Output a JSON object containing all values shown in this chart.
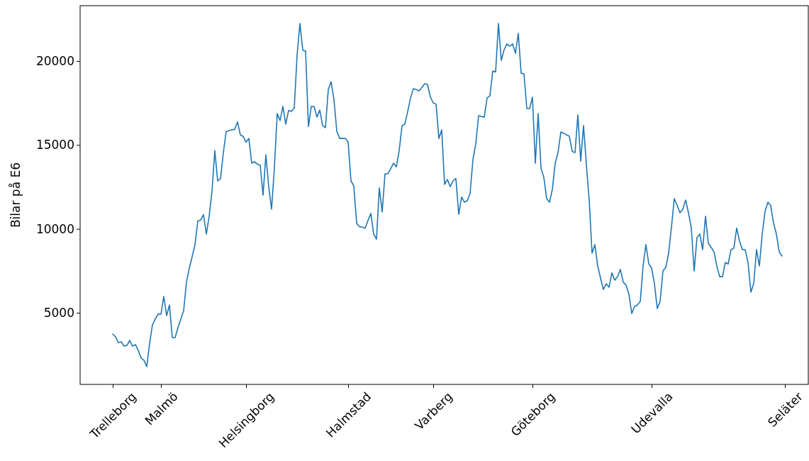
{
  "chart_data": {
    "type": "line",
    "ylabel": "Bilar på E6",
    "categories": [
      "Trelleborg",
      null,
      null,
      null,
      null,
      null,
      null,
      null,
      null,
      null,
      null,
      null,
      null,
      null,
      null,
      null,
      null,
      "Malmö",
      null,
      null,
      null,
      null,
      null,
      null,
      null,
      null,
      null,
      null,
      null,
      null,
      null,
      null,
      null,
      null,
      null,
      null,
      null,
      null,
      null,
      null,
      null,
      null,
      null,
      null,
      null,
      null,
      null,
      "Helsingborg",
      null,
      null,
      null,
      null,
      null,
      null,
      null,
      null,
      null,
      null,
      null,
      null,
      null,
      null,
      null,
      null,
      null,
      null,
      null,
      null,
      null,
      null,
      null,
      null,
      null,
      null,
      null,
      null,
      null,
      null,
      null,
      null,
      null,
      null,
      null,
      "Halmstad",
      null,
      null,
      null,
      null,
      null,
      null,
      null,
      null,
      null,
      null,
      null,
      null,
      null,
      null,
      null,
      null,
      null,
      null,
      null,
      null,
      null,
      null,
      null,
      null,
      null,
      null,
      null,
      null,
      null,
      "Varberg",
      null,
      null,
      null,
      null,
      null,
      null,
      null,
      null,
      null,
      null,
      null,
      null,
      null,
      null,
      null,
      null,
      null,
      null,
      null,
      null,
      null,
      null,
      null,
      null,
      null,
      null,
      null,
      null,
      null,
      null,
      null,
      null,
      null,
      null,
      "Göteborg",
      null,
      null,
      null,
      null,
      null,
      null,
      null,
      null,
      null,
      null,
      null,
      null,
      null,
      null,
      null,
      null,
      null,
      null,
      null,
      null,
      null,
      null,
      null,
      null,
      null,
      null,
      null,
      null,
      null,
      null,
      null,
      null,
      null,
      null,
      null,
      null,
      null,
      null,
      null,
      null,
      null,
      "Udevalla",
      null,
      null,
      null,
      null,
      null,
      null,
      null,
      null,
      null,
      null,
      null,
      null,
      null,
      null,
      null,
      null,
      null,
      null,
      null,
      null,
      null,
      null,
      null,
      null,
      null,
      null,
      null,
      null,
      null,
      null,
      null,
      null,
      null,
      null,
      null,
      null,
      null,
      null,
      null,
      null,
      null,
      null,
      null,
      null,
      null,
      null,
      "Seläter"
    ],
    "ylim": [
      730,
      23300
    ],
    "yticks": [
      5000,
      10000,
      15000,
      20000
    ],
    "grid": false,
    "marker": "none",
    "line_style": "solid",
    "series": [
      {
        "color": "#1f77b4",
        "values": [
          3730,
          3560,
          3220,
          3270,
          3010,
          3060,
          3350,
          3010,
          3100,
          2760,
          2300,
          2170,
          1790,
          3180,
          4280,
          4620,
          4920,
          4920,
          5970,
          4830,
          5460,
          3520,
          3520,
          4110,
          4620,
          5130,
          6820,
          7660,
          8340,
          9060,
          10470,
          10530,
          10850,
          9690,
          10750,
          12230,
          14660,
          12850,
          12990,
          14540,
          15800,
          15850,
          15900,
          15930,
          16370,
          15600,
          15510,
          15170,
          15390,
          13910,
          14000,
          13850,
          13790,
          12010,
          14410,
          12520,
          11170,
          13660,
          16870,
          16450,
          17300,
          16240,
          17050,
          17000,
          17200,
          20340,
          22240,
          20650,
          20600,
          16100,
          17300,
          17290,
          16660,
          17080,
          16150,
          16030,
          18300,
          18770,
          17720,
          15820,
          15390,
          15390,
          15390,
          15180,
          12860,
          12560,
          10340,
          10130,
          10100,
          10040,
          10500,
          10920,
          9690,
          9390,
          12440,
          11000,
          13280,
          13280,
          13580,
          13910,
          13700,
          14660,
          16150,
          16240,
          17000,
          17800,
          18350,
          18300,
          18220,
          18430,
          18650,
          18600,
          17850,
          17510,
          17430,
          15390,
          15900,
          12650,
          12940,
          12520,
          12860,
          13000,
          10870,
          11890,
          11590,
          11680,
          12100,
          14120,
          15050,
          16750,
          16700,
          16660,
          17810,
          17930,
          19410,
          19350,
          22240,
          20040,
          20680,
          21020,
          20890,
          21020,
          20460,
          21650,
          19280,
          19240,
          17170,
          17170,
          17850,
          13910,
          16870,
          13620,
          13070,
          11800,
          11590,
          12350,
          13900,
          14540,
          15770,
          15700,
          15600,
          15520,
          14620,
          14540,
          16790,
          14040,
          16150,
          13830,
          11720,
          8550,
          9060,
          7790,
          7070,
          6390,
          6730,
          6520,
          7370,
          6940,
          7150,
          7580,
          6820,
          6650,
          6100,
          4960,
          5380,
          5460,
          5670,
          7790,
          9060,
          7920,
          7660,
          6730,
          5250,
          5680,
          7490,
          7700,
          8550,
          10100,
          11800,
          11400,
          10960,
          11170,
          11720,
          10960,
          10050,
          7490,
          9480,
          9690,
          8760,
          10750,
          9140,
          8900,
          8630,
          7790,
          7150,
          7150,
          8000,
          7900,
          8760,
          8840,
          10050,
          9270,
          8760,
          8760,
          8000,
          6230,
          6730,
          8760,
          7790,
          9690,
          11040,
          11590,
          11380,
          10340,
          9690,
          8630,
          8380,
          null
        ]
      }
    ]
  }
}
